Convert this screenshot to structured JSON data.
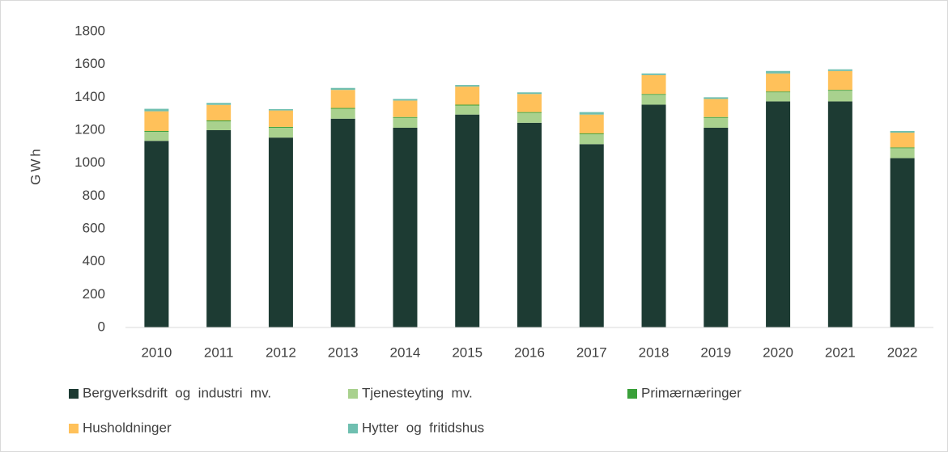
{
  "chart_data": {
    "type": "stacked-bar",
    "ylabel": "GWh",
    "categories": [
      "2010",
      "2011",
      "2012",
      "2013",
      "2014",
      "2015",
      "2016",
      "2017",
      "2018",
      "2019",
      "2020",
      "2021",
      "2022"
    ],
    "series": [
      {
        "name": "Bergverksdrift  og  industri  mv.",
        "color": "#1d3b33",
        "values": [
          1135,
          1200,
          1155,
          1270,
          1215,
          1295,
          1245,
          1115,
          1355,
          1215,
          1375,
          1375,
          1030
        ]
      },
      {
        "name": "Tjenesteyting  mv.",
        "color": "#a9d18e",
        "values": [
          55,
          54,
          60,
          60,
          60,
          55,
          60,
          60,
          60,
          60,
          55,
          65,
          60
        ]
      },
      {
        "name": "Primærnæringer",
        "color": "#3aa03a",
        "values": [
          5,
          5,
          5,
          5,
          5,
          5,
          5,
          5,
          5,
          5,
          5,
          5,
          5
        ]
      },
      {
        "name": "Husholdninger",
        "color": "#ffc15a",
        "values": [
          120,
          95,
          100,
          110,
          100,
          110,
          110,
          115,
          115,
          110,
          110,
          115,
          90
        ]
      },
      {
        "name": "Hytter  og  fritidshus",
        "color": "#6fbfb0",
        "values": [
          15,
          12,
          8,
          12,
          10,
          10,
          10,
          15,
          10,
          10,
          15,
          10,
          10
        ]
      }
    ],
    "ylim": [
      0,
      1800
    ],
    "yticks": [
      0,
      200,
      400,
      600,
      800,
      1000,
      1200,
      1400,
      1600,
      1800
    ],
    "grid": false,
    "legend": "bottom"
  }
}
